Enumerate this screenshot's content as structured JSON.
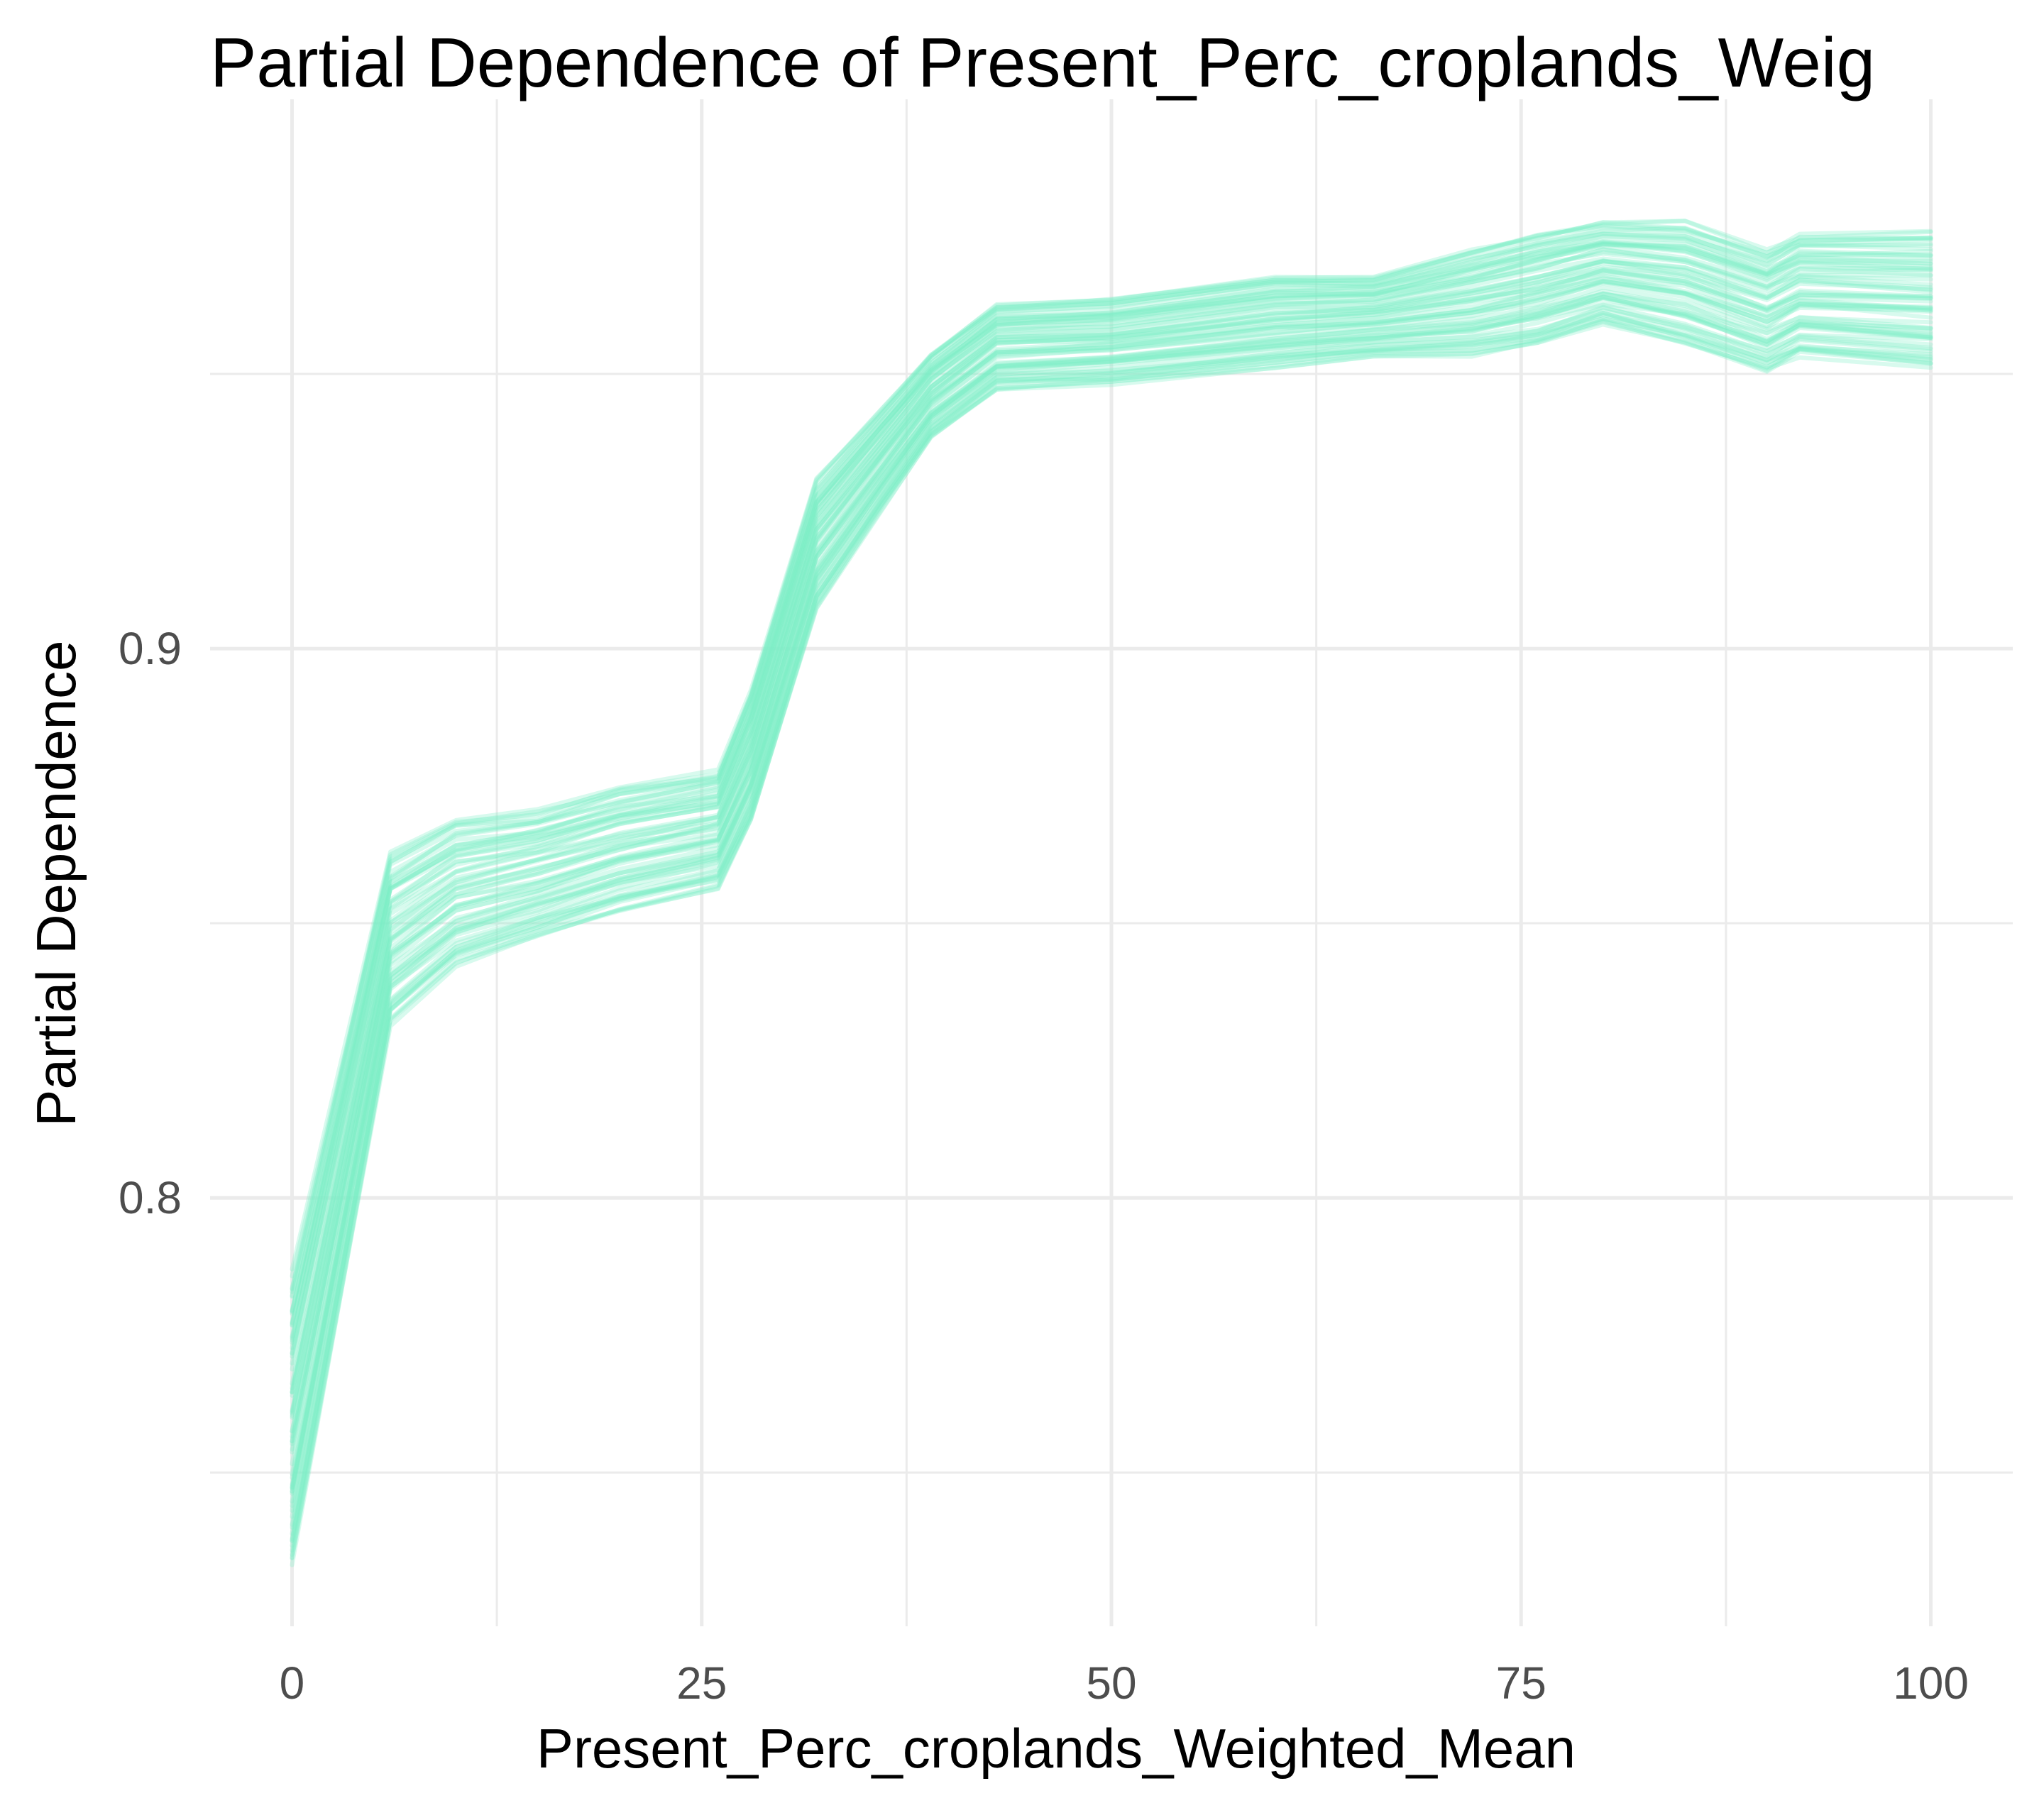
{
  "chart_data": {
    "type": "line",
    "title": "Partial Dependence of Present_Perc_croplands_Weig",
    "xlabel": "Present_Perc_croplands_Weighted_Mean",
    "ylabel": "Partial Dependence",
    "xlim": [
      -5,
      105
    ],
    "ylim": [
      0.722,
      1.0
    ],
    "x_ticks": [
      0,
      25,
      50,
      75,
      100
    ],
    "x_tick_labels": [
      "0",
      "25",
      "50",
      "75",
      "100"
    ],
    "y_ticks": [
      0.8,
      0.9
    ],
    "y_tick_labels": [
      "0.8",
      "0.9"
    ],
    "y_minor_ticks": [
      0.75,
      0.85,
      0.95
    ],
    "x_minor_ticks": [
      12.5,
      37.5,
      62.5,
      87.5
    ],
    "grid": true,
    "legend": "none",
    "line_color": "#7FF0C8",
    "line_opacity": 0.3,
    "n_series": 70,
    "x": [
      0,
      6,
      10,
      15,
      20,
      26,
      28,
      32,
      36,
      39,
      43,
      50,
      60,
      66,
      72,
      76,
      80,
      85,
      90,
      92,
      100
    ],
    "mean_curve": [
      0.773,
      0.848,
      0.856,
      0.859,
      0.863,
      0.866,
      0.88,
      0.916,
      0.933,
      0.944,
      0.953,
      0.954,
      0.957,
      0.958,
      0.963,
      0.967,
      0.969,
      0.968,
      0.961,
      0.965,
      0.964
    ],
    "band_min": [
      0.732,
      0.831,
      0.842,
      0.847,
      0.852,
      0.856,
      0.868,
      0.907,
      0.925,
      0.938,
      0.947,
      0.948,
      0.951,
      0.953,
      0.953,
      0.955,
      0.959,
      0.955,
      0.95,
      0.953,
      0.951
    ],
    "band_max": [
      0.787,
      0.863,
      0.869,
      0.871,
      0.875,
      0.878,
      0.893,
      0.931,
      0.944,
      0.954,
      0.963,
      0.964,
      0.968,
      0.968,
      0.973,
      0.976,
      0.978,
      0.978,
      0.973,
      0.976,
      0.976
    ]
  }
}
